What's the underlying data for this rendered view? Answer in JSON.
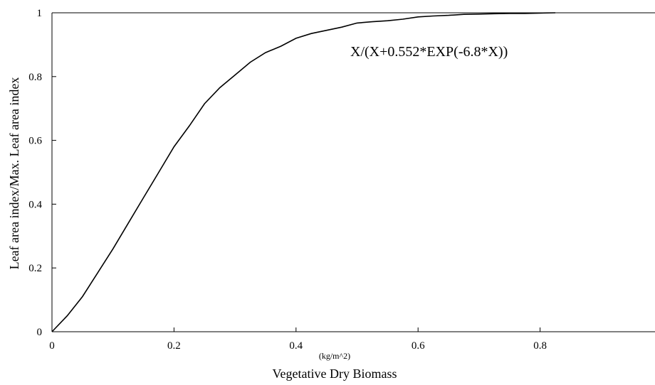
{
  "chart_data": {
    "type": "line",
    "title": "",
    "xlabel": "Vegetative Dry Biomass",
    "xunit": "(kg/m^2)",
    "ylabel": "Leaf area index/Max. Leaf area index",
    "xlim": [
      0,
      1
    ],
    "ylim": [
      0,
      1
    ],
    "x_ticks": [
      0,
      0.2,
      0.4,
      0.6,
      0.8
    ],
    "x_tick_labels": [
      "0",
      "0.2",
      "0.4",
      "0.6",
      "0.8"
    ],
    "y_ticks": [
      0,
      0.2,
      0.4,
      0.6,
      0.8,
      1
    ],
    "y_tick_labels": [
      "0",
      "0.2",
      "0.4",
      "0.6",
      "0.8",
      "1"
    ],
    "grid": false,
    "annotation": "X/(X+0.552*EXP(-6.8*X))",
    "series": [
      {
        "x": [
          0,
          0.025,
          0.05,
          0.075,
          0.1,
          0.125,
          0.15,
          0.175,
          0.2,
          0.225,
          0.25,
          0.275,
          0.3,
          0.325,
          0.35,
          0.375,
          0.4,
          0.425,
          0.45,
          0.475,
          0.5,
          0.525,
          0.55,
          0.575,
          0.6,
          0.625,
          0.65,
          0.675,
          0.7,
          0.725,
          0.75,
          0.775,
          0.8,
          0.825
        ],
        "y": [
          0,
          0.05,
          0.11,
          0.185,
          0.26,
          0.34,
          0.42,
          0.5,
          0.58,
          0.645,
          0.715,
          0.765,
          0.805,
          0.845,
          0.875,
          0.895,
          0.92,
          0.935,
          0.945,
          0.955,
          0.968,
          0.972,
          0.975,
          0.98,
          0.987,
          0.99,
          0.992,
          0.995,
          0.996,
          0.997,
          0.998,
          0.998,
          0.999,
          1.0
        ]
      }
    ]
  }
}
